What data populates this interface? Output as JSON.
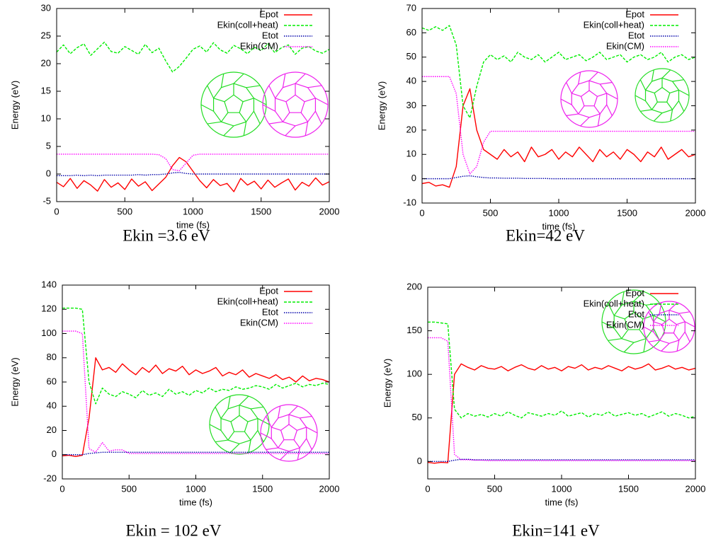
{
  "chart_data": [
    {
      "type": "line",
      "caption": "Ekin =3.6 eV",
      "xlabel": "time (fs)",
      "ylabel": "Energy (eV)",
      "x": [
        0,
        50,
        100,
        150,
        200,
        250,
        300,
        350,
        400,
        450,
        500,
        550,
        600,
        650,
        700,
        750,
        800,
        850,
        900,
        950,
        1000,
        1050,
        1100,
        1150,
        1200,
        1250,
        1300,
        1350,
        1400,
        1450,
        1500,
        1550,
        1600,
        1650,
        1700,
        1750,
        1800,
        1850,
        1900,
        1950,
        2000
      ],
      "xlim": [
        0,
        2000
      ],
      "xticks": [
        0,
        500,
        1000,
        1500,
        2000
      ],
      "ylim": [
        -5,
        30
      ],
      "yticks": [
        -5,
        0,
        5,
        10,
        15,
        20,
        25,
        30
      ],
      "legend": "upper right",
      "series": [
        {
          "name": "Epot",
          "color": "#ff0000",
          "style": "solid",
          "values": [
            -1.5,
            -2.3,
            -0.8,
            -2.6,
            -1.2,
            -2.0,
            -3.1,
            -1.0,
            -2.4,
            -1.6,
            -2.8,
            -0.9,
            -2.2,
            -1.4,
            -3.0,
            -1.8,
            -0.6,
            1.5,
            3.0,
            2.2,
            0.5,
            -1.2,
            -2.5,
            -1.0,
            -2.1,
            -1.7,
            -3.2,
            -0.8,
            -2.0,
            -1.3,
            -2.7,
            -1.1,
            -2.4,
            -1.6,
            -0.9,
            -2.9,
            -1.5,
            -2.2,
            -0.7,
            -2.0,
            -1.4
          ]
        },
        {
          "name": "Ekin(coll+heat)",
          "color": "#00ee00",
          "style": "dashed",
          "values": [
            22.1,
            23.4,
            21.8,
            22.9,
            23.6,
            21.5,
            22.7,
            23.9,
            22.2,
            21.9,
            23.1,
            22.4,
            21.7,
            23.5,
            22.0,
            22.8,
            20.5,
            18.5,
            19.5,
            21.0,
            22.6,
            23.2,
            22.1,
            23.8,
            22.5,
            21.9,
            23.3,
            22.7,
            21.8,
            23.0,
            22.4,
            23.6,
            22.0,
            22.9,
            23.4,
            21.7,
            22.8,
            23.1,
            22.3,
            21.9,
            22.6
          ]
        },
        {
          "name": "Etot",
          "color": "#0000aa",
          "style": "dotted",
          "values": [
            -0.3,
            -0.3,
            -0.3,
            -0.2,
            -0.3,
            -0.2,
            -0.3,
            -0.2,
            -0.2,
            -0.2,
            -0.2,
            -0.2,
            -0.1,
            -0.2,
            -0.1,
            -0.1,
            0,
            0.2,
            0.3,
            0.1,
            0,
            0,
            0,
            0,
            0,
            0,
            0,
            0,
            0,
            0,
            0,
            0,
            0,
            0,
            0,
            0,
            0,
            0,
            0,
            0,
            0
          ]
        },
        {
          "name": "Ekin(CM)",
          "color": "#ff00ff",
          "style": "dotted",
          "values": [
            3.6,
            3.6,
            3.6,
            3.6,
            3.6,
            3.6,
            3.6,
            3.6,
            3.6,
            3.6,
            3.6,
            3.6,
            3.6,
            3.6,
            3.6,
            3.5,
            2.8,
            0.8,
            0.6,
            2.0,
            3.4,
            3.6,
            3.6,
            3.6,
            3.6,
            3.6,
            3.6,
            3.6,
            3.6,
            3.6,
            3.6,
            3.6,
            3.6,
            3.6,
            3.6,
            3.6,
            3.6,
            3.6,
            3.6,
            3.6,
            3.6
          ]
        }
      ]
    },
    {
      "type": "line",
      "caption": "Ekin=42 eV",
      "xlabel": "time (fs)",
      "ylabel": "Energy (eV)",
      "x": [
        0,
        50,
        100,
        150,
        200,
        250,
        300,
        350,
        400,
        450,
        500,
        550,
        600,
        650,
        700,
        750,
        800,
        850,
        900,
        950,
        1000,
        1050,
        1100,
        1150,
        1200,
        1250,
        1300,
        1350,
        1400,
        1450,
        1500,
        1550,
        1600,
        1650,
        1700,
        1750,
        1800,
        1850,
        1900,
        1950,
        2000
      ],
      "xlim": [
        0,
        2000
      ],
      "xticks": [
        0,
        500,
        1000,
        1500,
        2000
      ],
      "ylim": [
        -10,
        70
      ],
      "yticks": [
        -10,
        0,
        10,
        20,
        30,
        40,
        50,
        60,
        70
      ],
      "legend": "upper right",
      "series": [
        {
          "name": "Epot",
          "color": "#ff0000",
          "style": "solid",
          "values": [
            -2,
            -1.5,
            -3,
            -2.5,
            -3.5,
            5,
            30,
            37,
            20,
            12,
            10,
            8,
            12,
            9,
            11,
            7,
            13,
            9,
            10,
            12,
            8,
            11,
            9,
            13,
            10,
            7,
            12,
            9,
            11,
            8,
            12,
            10,
            7,
            11,
            9,
            13,
            8,
            10,
            12,
            9,
            10
          ]
        },
        {
          "name": "Ekin(coll+heat)",
          "color": "#00ee00",
          "style": "dashed",
          "values": [
            62,
            61,
            62.5,
            61,
            63,
            55,
            30,
            25,
            38,
            48,
            51,
            49,
            50.5,
            48,
            52,
            50,
            49,
            51,
            48,
            50,
            52,
            49,
            50,
            51,
            48.5,
            50,
            52,
            49,
            50,
            51,
            48,
            50,
            51,
            49,
            50,
            52,
            48,
            50,
            51,
            49,
            50
          ]
        },
        {
          "name": "Etot",
          "color": "#0000aa",
          "style": "dotted",
          "values": [
            0,
            0,
            0,
            0,
            0,
            0.5,
            1,
            1.2,
            0.8,
            0.5,
            0.3,
            0.3,
            0.2,
            0.2,
            0.2,
            0.1,
            0.1,
            0.1,
            0.1,
            0,
            0,
            0,
            0,
            0,
            0,
            0,
            0,
            0,
            0,
            0,
            0,
            0,
            0,
            0,
            0,
            0,
            0,
            0,
            0,
            0,
            0
          ]
        },
        {
          "name": "Ekin(CM)",
          "color": "#ff00ff",
          "style": "dotted",
          "values": [
            42,
            42,
            42,
            42,
            42,
            35,
            10,
            2,
            5,
            15,
            19.5,
            19.5,
            19.5,
            19.5,
            19.5,
            19.5,
            19.5,
            19.5,
            19.5,
            19.5,
            19.5,
            19.5,
            19.5,
            19.5,
            19.5,
            19.5,
            19.5,
            19.5,
            19.5,
            19.5,
            19.5,
            19.5,
            19.5,
            19.5,
            19.5,
            19.5,
            19.5,
            19.5,
            19.5,
            19.5,
            19.5
          ]
        }
      ]
    },
    {
      "type": "line",
      "caption": "Ekin = 102 eV",
      "xlabel": "time (fs)",
      "ylabel": "Energy (eV)",
      "x": [
        0,
        50,
        100,
        150,
        200,
        250,
        300,
        350,
        400,
        450,
        500,
        550,
        600,
        650,
        700,
        750,
        800,
        850,
        900,
        950,
        1000,
        1050,
        1100,
        1150,
        1200,
        1250,
        1300,
        1350,
        1400,
        1450,
        1500,
        1550,
        1600,
        1650,
        1700,
        1750,
        1800,
        1850,
        1900,
        1950,
        2000
      ],
      "xlim": [
        0,
        2000
      ],
      "xticks": [
        0,
        500,
        1000,
        1500,
        2000
      ],
      "ylim": [
        -20,
        140
      ],
      "yticks": [
        -20,
        0,
        20,
        40,
        60,
        80,
        100,
        120,
        140
      ],
      "legend": "upper right",
      "series": [
        {
          "name": "Epot",
          "color": "#ff0000",
          "style": "solid",
          "values": [
            -1,
            -0.5,
            -1.5,
            -0.5,
            30,
            80,
            70,
            72,
            68,
            75,
            70,
            66,
            72,
            68,
            74,
            67,
            71,
            69,
            73,
            66,
            70,
            67,
            69,
            72,
            65,
            68,
            66,
            70,
            64,
            67,
            65,
            63,
            66,
            62,
            64,
            60,
            65,
            61,
            63,
            62,
            60
          ]
        },
        {
          "name": "Ekin(coll+heat)",
          "color": "#00ee00",
          "style": "dashed",
          "values": [
            121,
            121,
            121,
            120,
            60,
            42,
            55,
            50,
            48,
            52,
            50,
            47,
            53,
            49,
            51,
            48,
            54,
            50,
            52,
            49,
            53,
            51,
            55,
            52,
            54,
            53,
            56,
            54,
            55,
            57,
            56,
            54,
            58,
            55,
            57,
            59,
            56,
            58,
            57,
            59,
            58
          ]
        },
        {
          "name": "Etot",
          "color": "#0000aa",
          "style": "dotted",
          "values": [
            0,
            0,
            0,
            0,
            1,
            1.5,
            2,
            2,
            2,
            2,
            2,
            2,
            2,
            2,
            2,
            2,
            2,
            2,
            2,
            2,
            2,
            2,
            2,
            2,
            2,
            2,
            2,
            2,
            2,
            2,
            2,
            2,
            2,
            2,
            2,
            2,
            2,
            2,
            2,
            2,
            2
          ]
        },
        {
          "name": "Ekin(CM)",
          "color": "#ff00ff",
          "style": "dotted",
          "values": [
            102,
            102,
            102,
            100,
            5,
            2,
            10,
            3,
            4,
            4,
            1,
            1,
            1,
            1,
            1,
            1,
            1,
            1,
            1,
            1,
            1,
            1,
            1,
            1,
            1,
            1,
            1,
            1,
            1,
            1,
            1,
            1,
            1,
            1,
            1,
            1,
            1,
            1,
            1,
            1,
            1
          ]
        }
      ]
    },
    {
      "type": "line",
      "caption": "Ekin=141 eV",
      "xlabel": "time (fs)",
      "ylabel": "Energy (eV)",
      "x": [
        0,
        50,
        100,
        150,
        200,
        250,
        300,
        350,
        400,
        450,
        500,
        550,
        600,
        650,
        700,
        750,
        800,
        850,
        900,
        950,
        1000,
        1050,
        1100,
        1150,
        1200,
        1250,
        1300,
        1350,
        1400,
        1450,
        1500,
        1550,
        1600,
        1650,
        1700,
        1750,
        1800,
        1850,
        1900,
        1950,
        2000
      ],
      "xlim": [
        0,
        2000
      ],
      "xticks": [
        0,
        500,
        1000,
        1500,
        2000
      ],
      "ylim": [
        -20,
        200
      ],
      "yticks": [
        0,
        50,
        100,
        150,
        200
      ],
      "legend": "upper right",
      "series": [
        {
          "name": "Epot",
          "color": "#ff0000",
          "style": "solid",
          "values": [
            -1,
            -2,
            -1,
            -1.5,
            100,
            112,
            108,
            105,
            110,
            107,
            106,
            109,
            104,
            108,
            111,
            107,
            105,
            110,
            106,
            108,
            104,
            109,
            107,
            111,
            105,
            108,
            106,
            110,
            107,
            104,
            109,
            106,
            108,
            112,
            105,
            107,
            110,
            106,
            108,
            105,
            107
          ]
        },
        {
          "name": "Ekin(coll+heat)",
          "color": "#00ee00",
          "style": "dashed",
          "values": [
            160,
            160,
            159,
            158,
            60,
            50,
            55,
            52,
            54,
            51,
            55,
            52,
            57,
            53,
            50,
            56,
            54,
            52,
            55,
            53,
            58,
            52,
            54,
            56,
            51,
            55,
            53,
            57,
            52,
            54,
            56,
            53,
            55,
            51,
            54,
            57,
            52,
            55,
            53,
            50,
            52
          ]
        },
        {
          "name": "Etot",
          "color": "#0000aa",
          "style": "dotted",
          "values": [
            0,
            0,
            0,
            0,
            1.5,
            2.5,
            2.5,
            2,
            2,
            2,
            2,
            2,
            2,
            2,
            2,
            2,
            2,
            2,
            2,
            2,
            2,
            2,
            2,
            2,
            2,
            2,
            2,
            2,
            2,
            2,
            2,
            2,
            2,
            2,
            2,
            2,
            2,
            2,
            2,
            2,
            2
          ]
        },
        {
          "name": "Ekin(CM)",
          "color": "#ff00ff",
          "style": "dotted",
          "values": [
            142,
            142,
            142,
            138,
            8,
            2,
            2,
            1.5,
            1.5,
            1,
            1,
            1,
            1,
            1,
            1,
            1,
            1,
            1,
            1,
            1,
            1,
            1,
            1,
            1,
            1,
            1,
            1,
            1,
            1,
            1,
            1,
            1,
            1,
            1,
            1,
            1,
            1,
            1,
            1,
            1,
            1
          ]
        }
      ]
    }
  ]
}
